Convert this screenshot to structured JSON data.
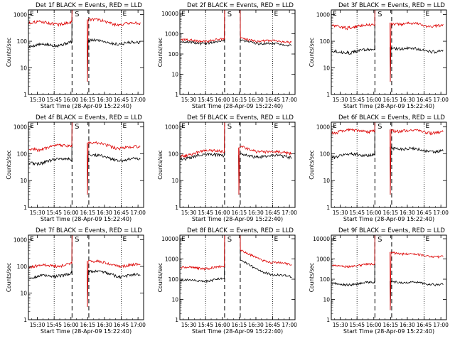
{
  "figure": {
    "background": "#ffffff",
    "colors": {
      "events": "#000000",
      "lld": "#dd0000",
      "frame": "#000000"
    }
  },
  "shared": {
    "xlabel": "Start Time (28-Apr-09 15:22:40)",
    "ylabel": "Counts/sec",
    "xtick_labels": [
      "15:30",
      "15:45",
      "16:00",
      "16:15",
      "16:30",
      "16:45",
      "17:00"
    ],
    "ytick_labels_3": [
      "1",
      "10",
      "100",
      "1000"
    ],
    "ytick_labels_4": [
      "1",
      "10",
      "100",
      "1000",
      "10000"
    ],
    "marker_S": "S",
    "marker_E": "E"
  },
  "chart_data": [
    {
      "type": "line",
      "title": "Det 1f BLACK = Events, RED = LLD",
      "xlabel": "Start Time (28-Apr-09 15:22:40)",
      "ylabel": "Counts/sec",
      "xlim": [
        "15:22",
        "17:05"
      ],
      "ylim": [
        1,
        1500
      ],
      "yscale": "log",
      "series": [
        {
          "name": "BLACK = Events",
          "before": [
            60,
            90
          ],
          "gap": [
            "16:01",
            "16:16"
          ],
          "after": [
            105,
            85
          ],
          "dip": 3
        },
        {
          "name": "RED = LLD",
          "before": [
            480,
            500
          ],
          "gap": [
            "16:01",
            "16:16"
          ],
          "after": [
            650,
            450
          ],
          "dip": 3
        }
      ]
    },
    {
      "type": "line",
      "title": "Det 2f BLACK = Events, RED = LLD",
      "xlabel": "Start Time (28-Apr-09 15:22:40)",
      "ylabel": "Counts/sec",
      "xlim": [
        "15:22",
        "17:05"
      ],
      "ylim": [
        1,
        15000
      ],
      "yscale": "log",
      "series": [
        {
          "name": "BLACK = Events",
          "before": [
            350,
            400
          ],
          "gap": [
            "16:02",
            "16:16"
          ],
          "after": [
            450,
            300
          ],
          "dip": null
        },
        {
          "name": "RED = LLD",
          "before": [
            450,
            500
          ],
          "gap": [
            "16:02",
            "16:16"
          ],
          "after": [
            550,
            420
          ],
          "dip": null
        }
      ]
    },
    {
      "type": "line",
      "title": "Det 3f BLACK = Events, RED = LLD",
      "xlabel": "Start Time (28-Apr-09 15:22:40)",
      "ylabel": "Counts/sec",
      "xlim": [
        "15:22",
        "17:05"
      ],
      "ylim": [
        1,
        1500
      ],
      "yscale": "log",
      "series": [
        {
          "name": "BLACK = Events",
          "before": [
            40,
            45
          ],
          "gap": [
            "16:01",
            "16:16"
          ],
          "after": [
            60,
            45
          ],
          "dip": 3
        },
        {
          "name": "RED = LLD",
          "before": [
            350,
            380
          ],
          "gap": [
            "16:01",
            "16:16"
          ],
          "after": [
            500,
            400
          ],
          "dip": 3
        }
      ]
    },
    {
      "type": "line",
      "title": "Det 4f BLACK = Events, RED = LLD",
      "xlabel": "Start Time (28-Apr-09 15:22:40)",
      "ylabel": "Counts/sec",
      "xlim": [
        "15:22",
        "17:05"
      ],
      "ylim": [
        1,
        1500
      ],
      "yscale": "log",
      "series": [
        {
          "name": "BLACK = Events",
          "before": [
            45,
            65
          ],
          "gap": [
            "16:01",
            "16:16"
          ],
          "after": [
            90,
            60
          ],
          "dip": 3
        },
        {
          "name": "RED = LLD",
          "before": [
            150,
            200
          ],
          "gap": [
            "16:01",
            "16:16"
          ],
          "after": [
            260,
            170
          ],
          "dip": 3
        }
      ]
    },
    {
      "type": "line",
      "title": "Det 5f BLACK = Events, RED = LLD",
      "xlabel": "Start Time (28-Apr-09 15:22:40)",
      "ylabel": "Counts/sec",
      "xlim": [
        "15:22",
        "17:05"
      ],
      "ylim": [
        1,
        1500
      ],
      "yscale": "log",
      "series": [
        {
          "name": "BLACK = Events",
          "before": [
            70,
            100
          ],
          "gap": [
            "16:02",
            "16:16"
          ],
          "after": [
            90,
            80
          ],
          "dip": 3
        },
        {
          "name": "RED = LLD",
          "before": [
            90,
            140
          ],
          "gap": [
            "16:02",
            "16:16"
          ],
          "after": [
            170,
            110
          ],
          "dip": 3
        }
      ]
    },
    {
      "type": "line",
      "title": "Det 6f BLACK = Events, RED = LLD",
      "xlabel": "Start Time (28-Apr-09 15:22:40)",
      "ylabel": "Counts/sec",
      "xlim": [
        "15:22",
        "17:05"
      ],
      "ylim": [
        1,
        1500
      ],
      "yscale": "log",
      "series": [
        {
          "name": "BLACK = Events",
          "before": [
            80,
            100
          ],
          "gap": [
            "16:01",
            "16:16"
          ],
          "after": [
            180,
            130
          ],
          "dip": 3
        },
        {
          "name": "RED = LLD",
          "before": [
            650,
            750
          ],
          "gap": [
            "16:01",
            "16:16"
          ],
          "after": [
            800,
            650
          ],
          "dip": 3
        }
      ]
    },
    {
      "type": "line",
      "title": "Det 7f BLACK = Events, RED = LLD",
      "xlabel": "Start Time (28-Apr-09 15:22:40)",
      "ylabel": "Counts/sec",
      "xlim": [
        "15:22",
        "17:05"
      ],
      "ylim": [
        1,
        1500
      ],
      "yscale": "log",
      "series": [
        {
          "name": "BLACK = Events",
          "before": [
            35,
            55
          ],
          "gap": [
            "16:01",
            "16:16"
          ],
          "after": [
            70,
            45
          ],
          "dip": 3
        },
        {
          "name": "RED = LLD",
          "before": [
            90,
            130
          ],
          "gap": [
            "16:01",
            "16:16"
          ],
          "after": [
            160,
            110
          ],
          "dip": 3
        }
      ]
    },
    {
      "type": "line",
      "title": "Det 8f BLACK = Events, RED = LLD",
      "xlabel": "Start Time (28-Apr-09 15:22:40)",
      "ylabel": "Counts/sec",
      "xlim": [
        "15:22",
        "17:05"
      ],
      "ylim": [
        1,
        15000
      ],
      "yscale": "log",
      "series": [
        {
          "name": "BLACK = Events",
          "before": [
            80,
            100
          ],
          "gap": [
            "16:02",
            "16:16"
          ],
          "after": [
            800,
            150
          ],
          "dip": null
        },
        {
          "name": "RED = LLD",
          "before": [
            350,
            400
          ],
          "gap": [
            "16:02",
            "16:16"
          ],
          "after": [
            2500,
            600
          ],
          "dip": null
        }
      ]
    },
    {
      "type": "line",
      "title": "Det 9f BLACK = Events, RED = LLD",
      "xlabel": "Start Time (28-Apr-09 15:22:40)",
      "ylabel": "Counts/sec",
      "xlim": [
        "15:22",
        "17:05"
      ],
      "ylim": [
        1,
        15000
      ],
      "yscale": "log",
      "series": [
        {
          "name": "BLACK = Events",
          "before": [
            55,
            65
          ],
          "gap": [
            "16:01",
            "16:16"
          ],
          "after": [
            80,
            60
          ],
          "dip": 3
        },
        {
          "name": "RED = LLD",
          "before": [
            450,
            500
          ],
          "gap": [
            "16:01",
            "16:16"
          ],
          "after": [
            2200,
            1400
          ],
          "dip": 3
        }
      ]
    }
  ]
}
